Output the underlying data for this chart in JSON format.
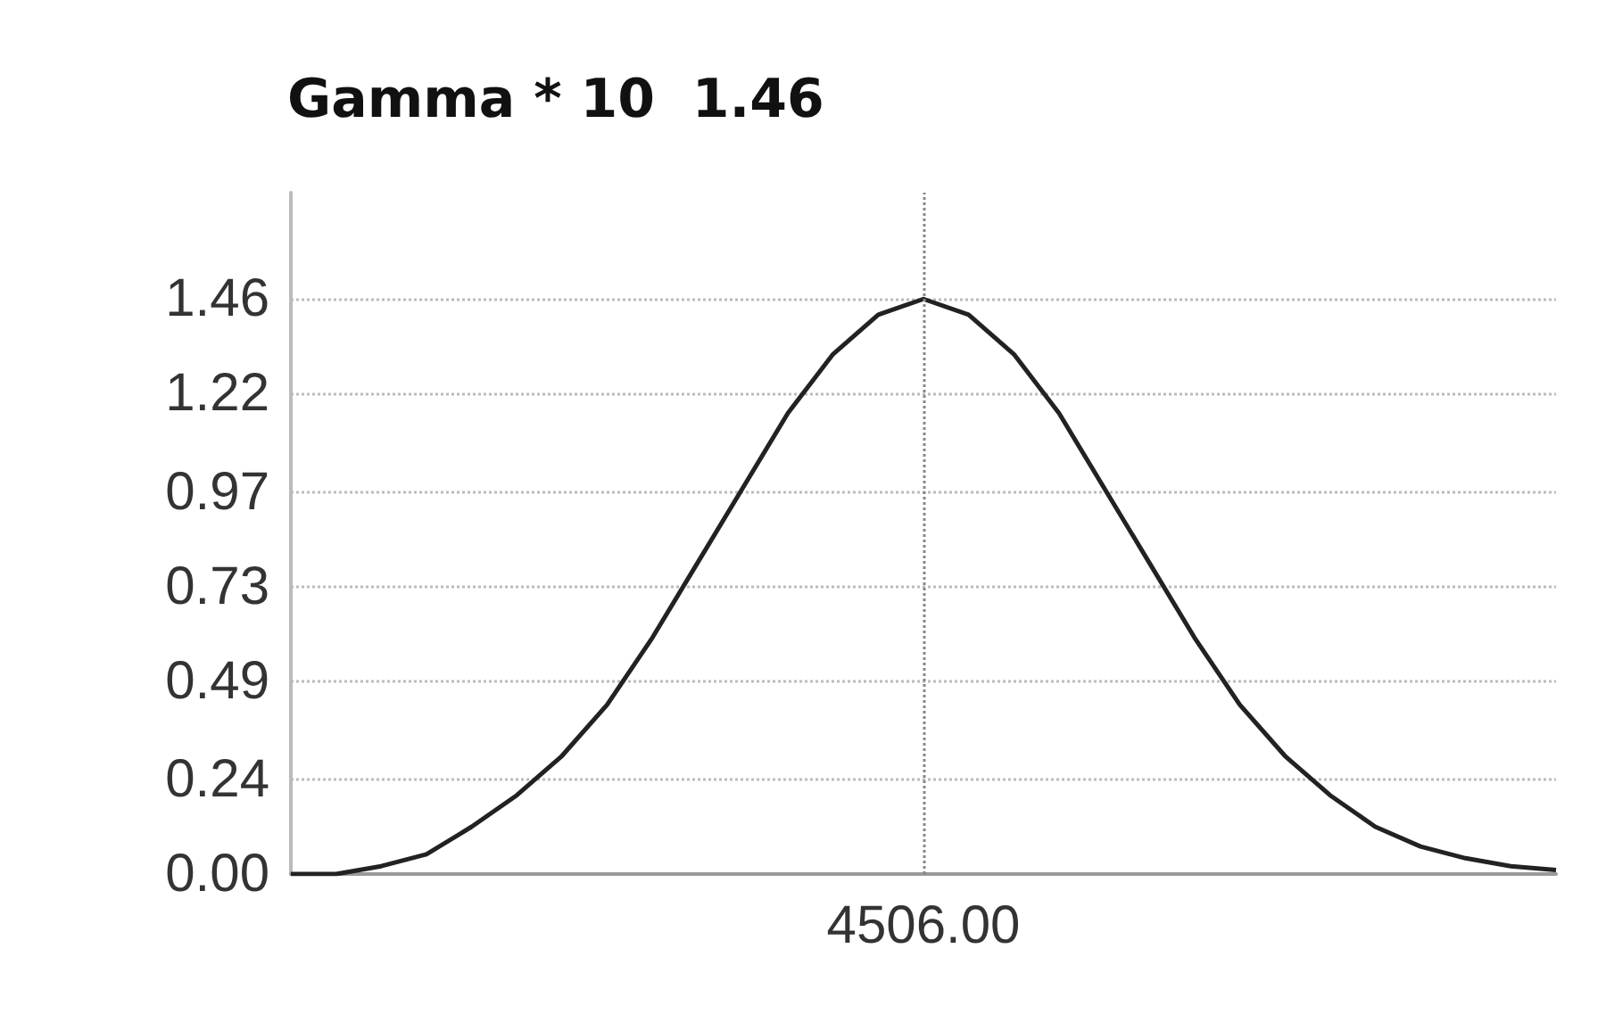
{
  "chart_data": {
    "type": "line",
    "title": "Gamma * 10  1.46",
    "categories": [
      null,
      null,
      null,
      null,
      null,
      null,
      null,
      null,
      null,
      null,
      null,
      null,
      null,
      null,
      "4506.00",
      null,
      null,
      null,
      null,
      null,
      null,
      null,
      null,
      null,
      null,
      null,
      null,
      null,
      null
    ],
    "series": [
      {
        "color": "#222222",
        "values": [
          0,
          0,
          0.02,
          0.05,
          0.12,
          0.2,
          0.3,
          0.43,
          0.6,
          0.79,
          0.98,
          1.17,
          1.32,
          1.42,
          1.46,
          1.42,
          1.32,
          1.17,
          0.98,
          0.79,
          0.6,
          0.43,
          0.3,
          0.2,
          0.12,
          0.07,
          0.04,
          0.02,
          0.01
        ]
      }
    ],
    "ylim": [
      0,
      1.73
    ],
    "yticks": [
      {
        "value": 0,
        "label": "0.00"
      },
      {
        "value": 0.24,
        "label": "0.24"
      },
      {
        "value": 0.49,
        "label": "0.49"
      },
      {
        "value": 0.73,
        "label": "0.73"
      },
      {
        "value": 0.97,
        "label": "0.97"
      },
      {
        "value": 1.22,
        "label": "1.22"
      },
      {
        "value": 1.46,
        "label": "1.46"
      }
    ],
    "ref_lines": [
      {
        "axis": "x",
        "value": "4506.00",
        "color": "#888888",
        "line_style": "dotted"
      }
    ],
    "grid": "y",
    "marker": "none",
    "line_style": "solid"
  }
}
